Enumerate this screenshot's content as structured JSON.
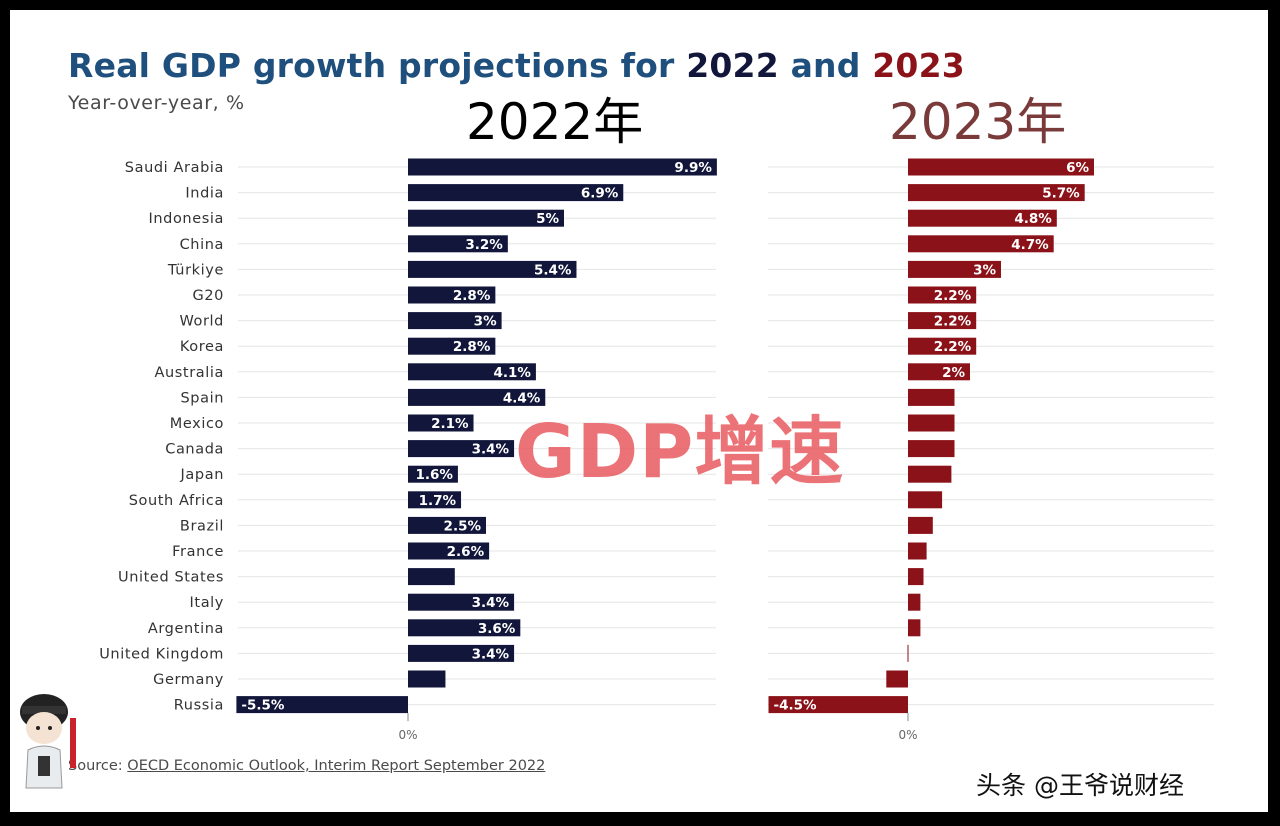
{
  "title": {
    "prefix": "Real GDP growth projections for ",
    "year1": "2022",
    "conj": " and ",
    "year2": "2023"
  },
  "subtitle": "Year-over-year, %",
  "overlay": {
    "year_2022": "2022年",
    "year_2023": "2023年",
    "watermark": "GDP增速",
    "credit": "头条 @王爷说财经"
  },
  "source": {
    "prefix": "Source: ",
    "link": "OECD Economic Outlook, Interim Report September 2022"
  },
  "colors": {
    "bar_2022": "#11163a",
    "bar_2023": "#8a1218",
    "title_blue": "#1e4f7d",
    "grid": "#e6e6e6",
    "watermark": "#e85a5f"
  },
  "chart_data": {
    "type": "bar",
    "orientation": "horizontal",
    "categories": [
      "Saudi Arabia",
      "India",
      "Indonesia",
      "China",
      "Türkiye",
      "G20",
      "World",
      "Korea",
      "Australia",
      "Spain",
      "Mexico",
      "Canada",
      "Japan",
      "South Africa",
      "Brazil",
      "France",
      "United States",
      "Italy",
      "Argentina",
      "United Kingdom",
      "Germany",
      "Russia"
    ],
    "zero_label": "0%",
    "series": [
      {
        "name": "2022",
        "values": [
          9.9,
          6.9,
          5,
          3.2,
          5.4,
          2.8,
          3,
          2.8,
          4.1,
          4.4,
          2.1,
          3.4,
          1.6,
          1.7,
          2.5,
          2.6,
          1.5,
          3.4,
          3.6,
          3.4,
          1.2,
          -5.5
        ],
        "labels": [
          "9.9%",
          "6.9%",
          "5%",
          "3.2%",
          "5.4%",
          "2.8%",
          "3%",
          "2.8%",
          "4.1%",
          "4.4%",
          "2.1%",
          "3.4%",
          "1.6%",
          "1.7%",
          "2.5%",
          "2.6%",
          "",
          "3.4%",
          "3.6%",
          "3.4%",
          "",
          "-5.5%"
        ]
      },
      {
        "name": "2023",
        "values": [
          6,
          5.7,
          4.8,
          4.7,
          3,
          2.2,
          2.2,
          2.2,
          2,
          1.5,
          1.5,
          1.5,
          1.4,
          1.1,
          0.8,
          0.6,
          0.5,
          0.4,
          0.4,
          0.0,
          -0.7,
          -4.5
        ],
        "labels": [
          "6%",
          "5.7%",
          "4.8%",
          "4.7%",
          "3%",
          "2.2%",
          "2.2%",
          "2.2%",
          "2%",
          "",
          "",
          "",
          "",
          "",
          "",
          "",
          "",
          "",
          "",
          "",
          "",
          "-4.5%"
        ]
      }
    ]
  }
}
